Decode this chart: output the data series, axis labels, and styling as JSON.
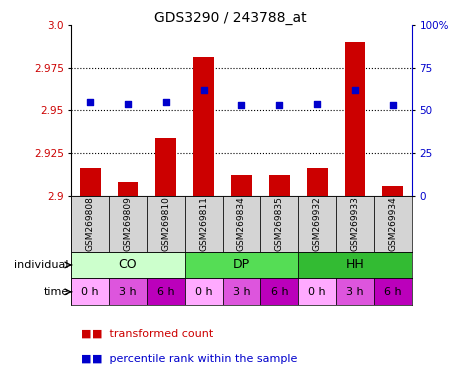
{
  "title": "GDS3290 / 243788_at",
  "samples": [
    "GSM269808",
    "GSM269809",
    "GSM269810",
    "GSM269811",
    "GSM269834",
    "GSM269835",
    "GSM269932",
    "GSM269933",
    "GSM269934"
  ],
  "bar_values": [
    2.916,
    2.908,
    2.934,
    2.981,
    2.912,
    2.912,
    2.916,
    2.99,
    2.906
  ],
  "percentile_values": [
    55,
    54,
    55,
    62,
    53,
    53,
    54,
    62,
    53
  ],
  "ylim_left": [
    2.9,
    3.0
  ],
  "ylim_right": [
    0,
    100
  ],
  "yticks_left": [
    2.9,
    2.925,
    2.95,
    2.975,
    3.0
  ],
  "yticks_right": [
    0,
    25,
    50,
    75,
    100
  ],
  "bar_color": "#cc0000",
  "dot_color": "#0000cc",
  "groups": [
    {
      "label": "CO",
      "start": 0,
      "end": 3,
      "color": "#ccffcc"
    },
    {
      "label": "DP",
      "start": 3,
      "end": 6,
      "color": "#55dd55"
    },
    {
      "label": "HH",
      "start": 6,
      "end": 9,
      "color": "#33bb33"
    }
  ],
  "time_labels": [
    "0 h",
    "3 h",
    "6 h",
    "0 h",
    "3 h",
    "6 h",
    "0 h",
    "3 h",
    "6 h"
  ],
  "time_colors": [
    "#ffaaff",
    "#dd55dd",
    "#bb00bb",
    "#ffaaff",
    "#dd55dd",
    "#bb00bb",
    "#ffaaff",
    "#dd55dd",
    "#bb00bb"
  ],
  "individual_label": "individual",
  "time_label": "time",
  "legend_bar_label": "transformed count",
  "legend_dot_label": "percentile rank within the sample",
  "bar_color_legend": "#cc0000",
  "dot_color_legend": "#0000cc",
  "title_fontsize": 10,
  "tick_fontsize": 7.5,
  "sample_fontsize": 6.5,
  "group_fontsize": 9,
  "time_fontsize": 8,
  "legend_fontsize": 8
}
